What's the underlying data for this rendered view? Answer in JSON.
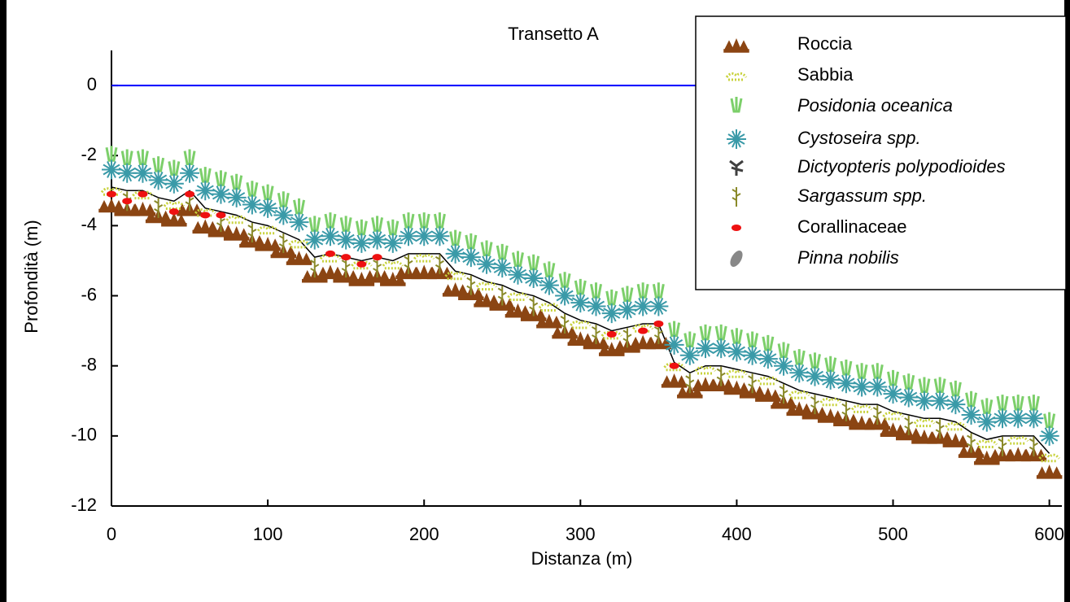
{
  "chart_data": {
    "type": "line",
    "title": "Transetto A",
    "xlabel": "Distanza (m)",
    "ylabel": "Profondità (m)",
    "xlim": [
      0,
      608
    ],
    "ylim": [
      -12,
      1
    ],
    "xticks": [
      0,
      100,
      200,
      300,
      400,
      500,
      600
    ],
    "yticks": [
      0,
      -2,
      -4,
      -6,
      -8,
      -10,
      -12
    ],
    "hline": {
      "value": 0,
      "color": "#0000ff"
    },
    "profile": {
      "color": "#000000",
      "x": [
        0,
        10,
        20,
        30,
        40,
        50,
        60,
        70,
        80,
        90,
        100,
        110,
        120,
        130,
        140,
        150,
        160,
        170,
        180,
        190,
        200,
        210,
        220,
        230,
        240,
        250,
        260,
        270,
        280,
        290,
        300,
        310,
        320,
        330,
        340,
        350,
        360,
        370,
        380,
        390,
        400,
        410,
        420,
        430,
        440,
        450,
        460,
        470,
        480,
        490,
        500,
        510,
        520,
        530,
        540,
        550,
        560,
        570,
        580,
        590,
        600
      ],
      "values": [
        -2.9,
        -3.0,
        -3.0,
        -3.2,
        -3.3,
        -3.0,
        -3.5,
        -3.6,
        -3.7,
        -3.9,
        -4.0,
        -4.2,
        -4.4,
        -4.9,
        -4.8,
        -4.9,
        -5.0,
        -4.9,
        -5.0,
        -4.8,
        -4.8,
        -4.8,
        -5.3,
        -5.4,
        -5.6,
        -5.7,
        -5.9,
        -6.0,
        -6.2,
        -6.5,
        -6.7,
        -6.8,
        -7.0,
        -6.9,
        -6.8,
        -6.8,
        -7.9,
        -8.2,
        -8.0,
        -8.0,
        -8.1,
        -8.2,
        -8.3,
        -8.5,
        -8.7,
        -8.8,
        -8.9,
        -9.0,
        -9.1,
        -9.1,
        -9.3,
        -9.4,
        -9.5,
        -9.5,
        -9.6,
        -9.9,
        -10.1,
        -10.0,
        -10.0,
        -10.0,
        -10.5
      ]
    },
    "series": [
      {
        "name": "Roccia",
        "marker": "rock",
        "color": "#8b4513",
        "italic": false,
        "x": [
          0,
          10,
          20,
          30,
          40,
          50,
          60,
          70,
          80,
          90,
          100,
          110,
          120,
          130,
          140,
          150,
          160,
          170,
          180,
          190,
          200,
          210,
          220,
          230,
          240,
          250,
          260,
          270,
          280,
          290,
          300,
          310,
          320,
          330,
          340,
          350,
          360,
          370,
          380,
          390,
          400,
          410,
          420,
          430,
          440,
          450,
          460,
          470,
          480,
          490,
          500,
          510,
          520,
          530,
          540,
          550,
          560,
          570,
          580,
          590,
          600
        ],
        "values": [
          -3.4,
          -3.5,
          -3.5,
          -3.7,
          -3.8,
          -3.5,
          -4.0,
          -4.1,
          -4.2,
          -4.4,
          -4.5,
          -4.7,
          -4.9,
          -5.4,
          -5.3,
          -5.4,
          -5.5,
          -5.4,
          -5.5,
          -5.3,
          -5.3,
          -5.3,
          -5.8,
          -5.9,
          -6.1,
          -6.2,
          -6.4,
          -6.5,
          -6.7,
          -7.0,
          -7.2,
          -7.3,
          -7.5,
          -7.4,
          -7.3,
          -7.3,
          -8.4,
          -8.7,
          -8.5,
          -8.5,
          -8.6,
          -8.7,
          -8.8,
          -9.0,
          -9.2,
          -9.3,
          -9.4,
          -9.5,
          -9.6,
          -9.6,
          -9.8,
          -9.9,
          -10.0,
          -10.0,
          -10.1,
          -10.4,
          -10.6,
          -10.5,
          -10.5,
          -10.5,
          -11.0
        ]
      },
      {
        "name": "Sabbia",
        "marker": "sand",
        "color": "#c8d23c",
        "italic": false,
        "x": [
          0,
          20,
          40,
          60,
          80,
          100,
          120,
          140,
          160,
          180,
          200,
          220,
          240,
          260,
          280,
          300,
          320,
          340,
          360,
          380,
          400,
          420,
          440,
          460,
          480,
          500,
          520,
          540,
          560,
          580,
          600
        ],
        "values": [
          -3.0,
          -3.1,
          -3.4,
          -3.6,
          -3.8,
          -4.1,
          -4.5,
          -4.9,
          -5.1,
          -5.1,
          -4.9,
          -5.4,
          -5.7,
          -6.0,
          -6.3,
          -6.8,
          -7.1,
          -6.9,
          -8.0,
          -8.1,
          -8.2,
          -8.4,
          -8.8,
          -9.0,
          -9.2,
          -9.4,
          -9.6,
          -9.7,
          -10.2,
          -10.1,
          -10.6
        ]
      },
      {
        "name": "Posidonia oceanica",
        "marker": "posidonia",
        "color": "#7ccf6a",
        "italic": true,
        "x": [
          0,
          10,
          20,
          30,
          40,
          50,
          60,
          70,
          80,
          90,
          100,
          110,
          120,
          130,
          140,
          150,
          160,
          170,
          180,
          190,
          200,
          210,
          220,
          230,
          240,
          250,
          260,
          270,
          280,
          290,
          300,
          310,
          320,
          330,
          340,
          350,
          360,
          370,
          380,
          390,
          400,
          410,
          420,
          430,
          440,
          450,
          460,
          470,
          480,
          490,
          500,
          510,
          520,
          530,
          540,
          550,
          560,
          570,
          580,
          590,
          600
        ],
        "values": [
          -2.0,
          -2.1,
          -2.1,
          -2.3,
          -2.4,
          -2.1,
          -2.6,
          -2.7,
          -2.8,
          -3.0,
          -3.1,
          -3.3,
          -3.5,
          -4.0,
          -3.9,
          -4.0,
          -4.1,
          -4.0,
          -4.1,
          -3.9,
          -3.9,
          -3.9,
          -4.4,
          -4.5,
          -4.7,
          -4.8,
          -5.0,
          -5.1,
          -5.3,
          -5.6,
          -5.8,
          -5.9,
          -6.1,
          -6.0,
          -5.9,
          -5.9,
          -7.0,
          -7.3,
          -7.1,
          -7.1,
          -7.2,
          -7.3,
          -7.4,
          -7.6,
          -7.8,
          -7.9,
          -8.0,
          -8.1,
          -8.2,
          -8.2,
          -8.4,
          -8.5,
          -8.6,
          -8.6,
          -8.7,
          -9.0,
          -9.2,
          -9.1,
          -9.1,
          -9.1,
          -9.6
        ]
      },
      {
        "name": "Cystoseira spp.",
        "marker": "cystoseira",
        "color": "#3a9aa8",
        "italic": true,
        "x": [
          0,
          10,
          20,
          30,
          40,
          50,
          60,
          70,
          80,
          90,
          100,
          110,
          120,
          130,
          140,
          150,
          160,
          170,
          180,
          190,
          200,
          210,
          220,
          230,
          240,
          250,
          260,
          270,
          280,
          290,
          300,
          310,
          320,
          330,
          340,
          350,
          360,
          370,
          380,
          390,
          400,
          410,
          420,
          430,
          440,
          450,
          460,
          470,
          480,
          490,
          500,
          510,
          520,
          530,
          540,
          550,
          560,
          570,
          580,
          590,
          600
        ],
        "values": [
          -2.4,
          -2.5,
          -2.5,
          -2.7,
          -2.8,
          -2.5,
          -3.0,
          -3.1,
          -3.2,
          -3.4,
          -3.5,
          -3.7,
          -3.9,
          -4.4,
          -4.3,
          -4.4,
          -4.5,
          -4.4,
          -4.5,
          -4.3,
          -4.3,
          -4.3,
          -4.8,
          -4.9,
          -5.1,
          -5.2,
          -5.4,
          -5.5,
          -5.7,
          -6.0,
          -6.2,
          -6.3,
          -6.5,
          -6.4,
          -6.3,
          -6.3,
          -7.4,
          -7.7,
          -7.5,
          -7.5,
          -7.6,
          -7.7,
          -7.8,
          -8.0,
          -8.2,
          -8.3,
          -8.4,
          -8.5,
          -8.6,
          -8.6,
          -8.8,
          -8.9,
          -9.0,
          -9.0,
          -9.1,
          -9.4,
          -9.6,
          -9.5,
          -9.5,
          -9.5,
          -10.0
        ]
      },
      {
        "name": "Dictyopteris polypodioides",
        "marker": "dictyopteris",
        "color": "#404040",
        "italic": true,
        "x": [],
        "values": []
      },
      {
        "name": "Sargassum spp.",
        "marker": "sargassum",
        "color": "#8a8a2a",
        "italic": true,
        "x": [
          10,
          30,
          50,
          70,
          90,
          110,
          130,
          150,
          170,
          190,
          210,
          230,
          250,
          270,
          290,
          310,
          330,
          350,
          370,
          390,
          410,
          430,
          450,
          470,
          490,
          510,
          530,
          550,
          570,
          590
        ],
        "values": [
          -3.3,
          -3.5,
          -3.3,
          -3.9,
          -4.2,
          -4.5,
          -5.2,
          -5.2,
          -5.2,
          -5.1,
          -5.1,
          -5.7,
          -6.0,
          -6.3,
          -6.8,
          -7.1,
          -7.2,
          -7.1,
          -8.5,
          -8.3,
          -8.5,
          -8.8,
          -9.1,
          -9.3,
          -9.4,
          -9.7,
          -9.8,
          -10.2,
          -10.3,
          -10.3
        ]
      },
      {
        "name": "Corallinaceae",
        "marker": "coral",
        "color": "#ee1111",
        "italic": false,
        "x": [
          0,
          10,
          20,
          40,
          50,
          60,
          70,
          140,
          150,
          160,
          170,
          320,
          340,
          350,
          360
        ],
        "values": [
          -3.1,
          -3.3,
          -3.1,
          -3.6,
          -3.1,
          -3.7,
          -3.7,
          -4.8,
          -4.9,
          -5.1,
          -4.9,
          -7.1,
          -7.0,
          -6.8,
          -8.0
        ]
      },
      {
        "name": "Pinna nobilis",
        "marker": "pinna",
        "color": "#888888",
        "italic": true,
        "x": [],
        "values": []
      }
    ]
  }
}
